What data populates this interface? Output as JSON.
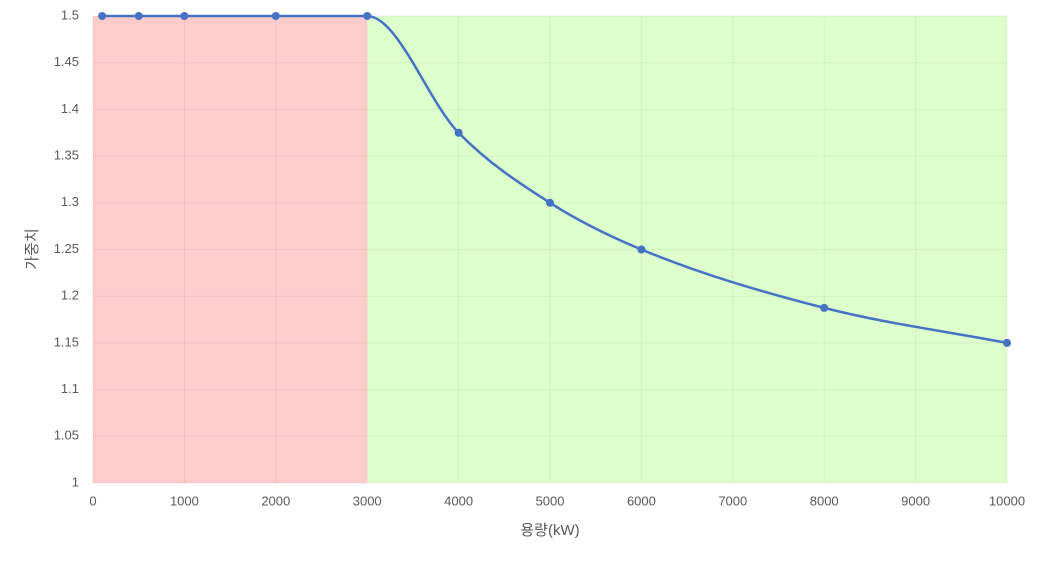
{
  "chart_data": {
    "type": "line",
    "x_label": "용량(kW)",
    "y_label": "가중치",
    "x": [
      100,
      500,
      1000,
      2000,
      3000,
      4000,
      5000,
      6000,
      8000,
      10000
    ],
    "series": [
      {
        "color": "#4472c4",
        "values": [
          1.5,
          1.5,
          1.5,
          1.5,
          1.5,
          1.375,
          1.3,
          1.25,
          1.1875,
          1.15
        ]
      }
    ],
    "regions": [
      {
        "from": 0,
        "to": 3000,
        "color": "#ffcccc"
      },
      {
        "from": 3000,
        "to": 10000,
        "color": "#ddffcc"
      }
    ],
    "xlim": [
      0,
      10000
    ],
    "xticks": [
      0,
      1000,
      2000,
      3000,
      4000,
      5000,
      6000,
      7000,
      8000,
      9000,
      10000
    ],
    "ylim": [
      1,
      1.5
    ],
    "yticks": [
      1,
      1.05,
      1.1,
      1.15,
      1.2,
      1.25,
      1.3,
      1.35,
      1.4,
      1.45,
      1.5
    ],
    "grid": true,
    "smooth": true
  }
}
